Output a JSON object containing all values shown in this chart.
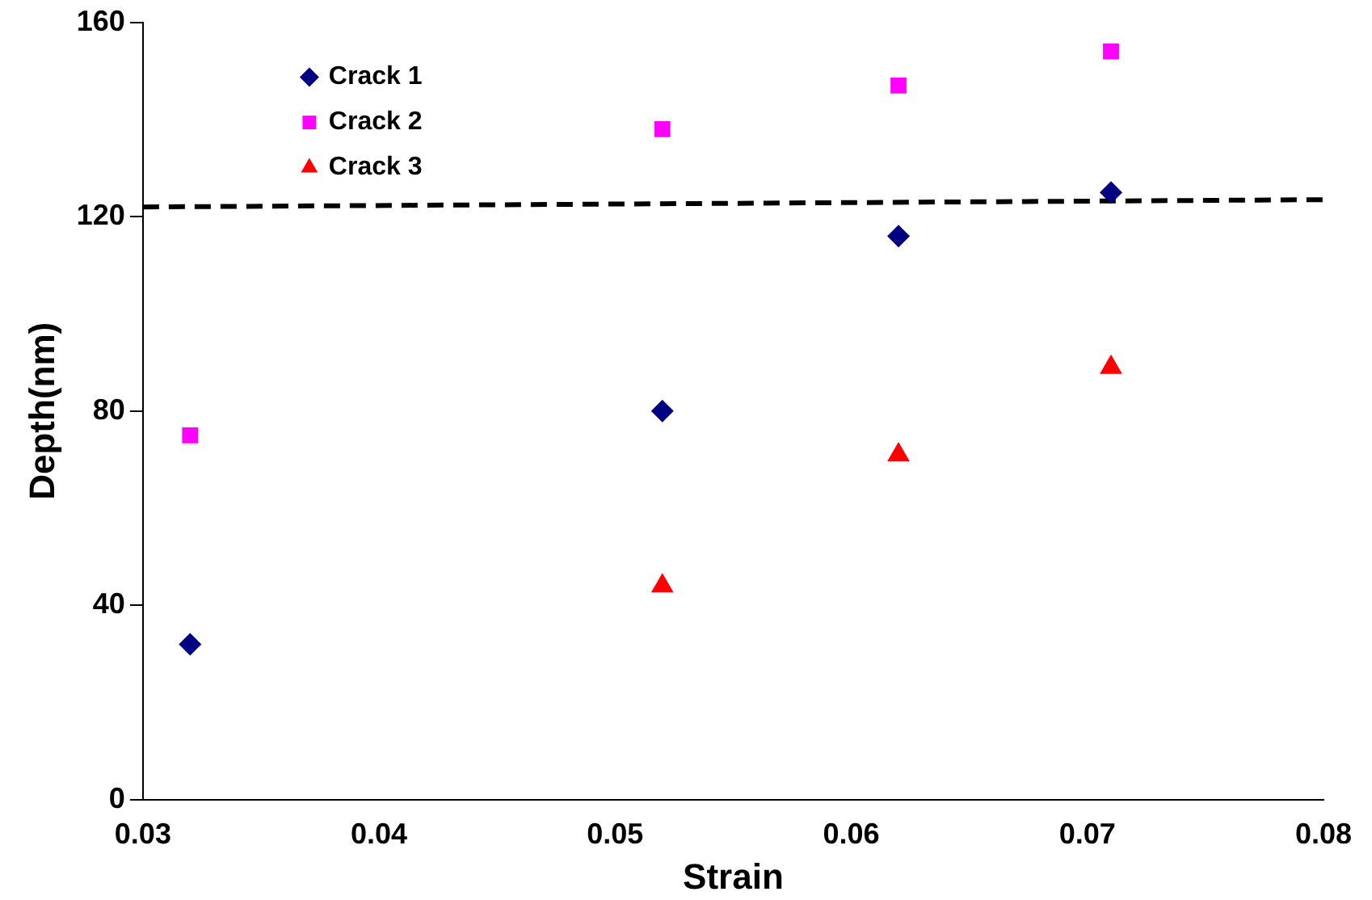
{
  "chart_data": {
    "type": "scatter",
    "xlabel": "Strain",
    "ylabel": "Depth(nm)",
    "xlim": [
      0.03,
      0.08
    ],
    "xticks": [
      0.03,
      0.04,
      0.05,
      0.06,
      0.07,
      0.08
    ],
    "ylim": [
      0,
      160
    ],
    "yticks": [
      0,
      40,
      80,
      120,
      160
    ],
    "grid": false,
    "legend": "top left",
    "series": [
      {
        "name": "Crack 1",
        "color": "#000080",
        "marker": "diamond",
        "x": [
          0.032,
          0.052,
          0.062,
          0.071
        ],
        "values": [
          32,
          80,
          116,
          125
        ]
      },
      {
        "name": "Crack 2",
        "color": "#ff00ff",
        "marker": "square",
        "x": [
          0.032,
          0.052,
          0.062,
          0.071
        ],
        "values": [
          75,
          138,
          147,
          154
        ]
      },
      {
        "name": "Crack 3",
        "color": "#ff0000",
        "marker": "triangle",
        "x": [
          0.052,
          0.062,
          0.071
        ],
        "values": [
          44,
          71,
          89
        ]
      },
      {
        "type": "line",
        "color": "#000000",
        "marker": "none",
        "line_style": "dashed",
        "x": [
          0.03,
          0.08
        ],
        "values": [
          122,
          123.5
        ]
      }
    ]
  }
}
